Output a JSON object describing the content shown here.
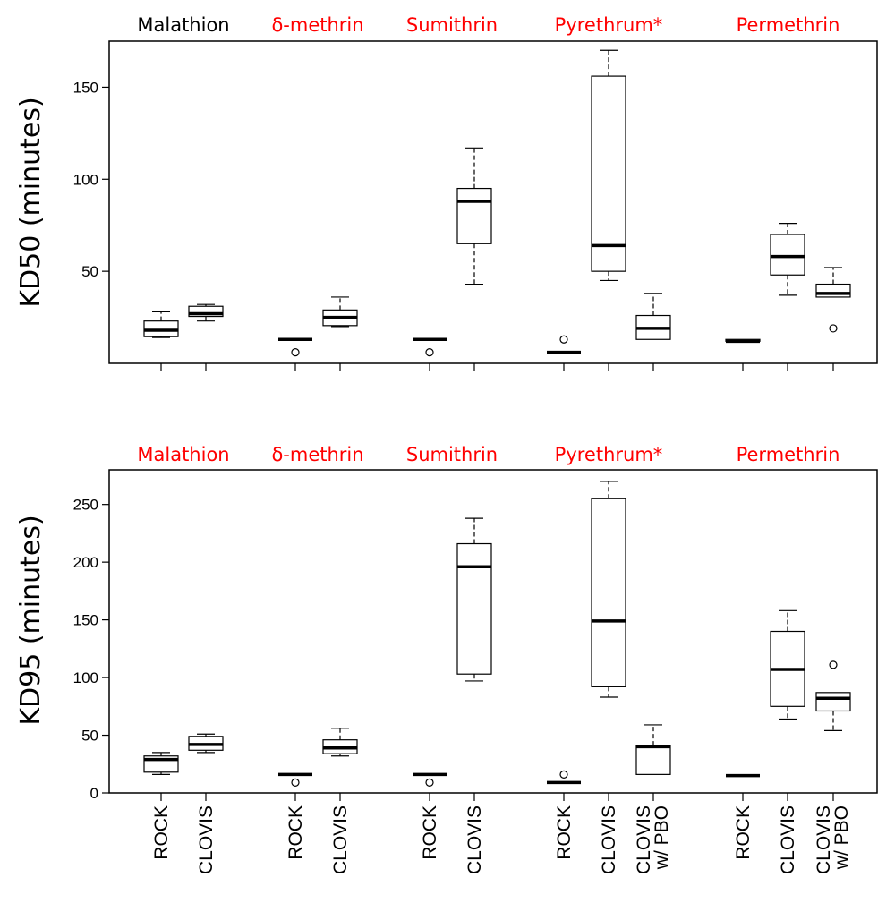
{
  "chart_data": [
    {
      "type": "box",
      "ylabel": "KD50 (minutes)",
      "ylim": [
        0,
        175
      ],
      "yticks": [
        50,
        100,
        150
      ],
      "grid": false,
      "groups": [
        {
          "label": "Malathion",
          "color": "#000000",
          "categories": [
            "ROCK",
            "CLOVIS"
          ]
        },
        {
          "label": "δ-methrin",
          "color": "#ff0000",
          "categories": [
            "ROCK",
            "CLOVIS"
          ]
        },
        {
          "label": "Sumithrin",
          "color": "#ff0000",
          "categories": [
            "ROCK",
            "CLOVIS"
          ]
        },
        {
          "label": "Pyrethrum*",
          "color": "#ff0000",
          "categories": [
            "ROCK",
            "CLOVIS",
            "CLOVIS w/ PBO"
          ]
        },
        {
          "label": "Permethrin",
          "color": "#ff0000",
          "categories": [
            "ROCK",
            "CLOVIS",
            "CLOVIS w/ PBO"
          ]
        }
      ],
      "boxes": [
        {
          "group": "Malathion",
          "category": "ROCK",
          "whisker_low": 14,
          "q1": 14.5,
          "median": 18,
          "q3": 23,
          "whisker_high": 28,
          "outliers": []
        },
        {
          "group": "Malathion",
          "category": "CLOVIS",
          "whisker_low": 23,
          "q1": 25.5,
          "median": 27,
          "q3": 31,
          "whisker_high": 32,
          "outliers": []
        },
        {
          "group": "δ-methrin",
          "category": "ROCK",
          "whisker_low": 13,
          "q1": 13,
          "median": 13,
          "q3": 13,
          "whisker_high": 13,
          "outliers": [
            6
          ]
        },
        {
          "group": "δ-methrin",
          "category": "CLOVIS",
          "whisker_low": 20,
          "q1": 20.5,
          "median": 25,
          "q3": 29,
          "whisker_high": 36,
          "outliers": []
        },
        {
          "group": "Sumithrin",
          "category": "ROCK",
          "whisker_low": 13,
          "q1": 13,
          "median": 13,
          "q3": 13,
          "whisker_high": 13,
          "outliers": [
            6
          ]
        },
        {
          "group": "Sumithrin",
          "category": "CLOVIS",
          "whisker_low": 43,
          "q1": 65,
          "median": 88,
          "q3": 95,
          "whisker_high": 117,
          "outliers": []
        },
        {
          "group": "Pyrethrum*",
          "category": "ROCK",
          "whisker_low": 6,
          "q1": 6,
          "median": 6,
          "q3": 6,
          "whisker_high": 6,
          "outliers": [
            13
          ]
        },
        {
          "group": "Pyrethrum*",
          "category": "CLOVIS",
          "whisker_low": 45,
          "q1": 50,
          "median": 64,
          "q3": 156,
          "whisker_high": 170,
          "outliers": []
        },
        {
          "group": "Pyrethrum*",
          "category": "CLOVIS w/ PBO",
          "whisker_low": 13,
          "q1": 13,
          "median": 19,
          "q3": 26,
          "whisker_high": 38,
          "outliers": []
        },
        {
          "group": "Permethrin",
          "category": "ROCK",
          "whisker_low": 12,
          "q1": 12,
          "median": 12,
          "q3": 13,
          "whisker_high": 13,
          "outliers": []
        },
        {
          "group": "Permethrin",
          "category": "CLOVIS",
          "whisker_low": 37,
          "q1": 48,
          "median": 58,
          "q3": 70,
          "whisker_high": 76,
          "outliers": []
        },
        {
          "group": "Permethrin",
          "category": "CLOVIS w/ PBO",
          "whisker_low": 36,
          "q1": 36,
          "median": 38,
          "q3": 43,
          "whisker_high": 52,
          "outliers": [
            19
          ]
        }
      ]
    },
    {
      "type": "box",
      "ylabel": "KD95 (minutes)",
      "ylim": [
        0,
        280
      ],
      "yticks": [
        0,
        50,
        100,
        150,
        200,
        250
      ],
      "grid": false,
      "groups": [
        {
          "label": "Malathion",
          "color": "#ff0000",
          "categories": [
            "ROCK",
            "CLOVIS"
          ]
        },
        {
          "label": "δ-methrin",
          "color": "#ff0000",
          "categories": [
            "ROCK",
            "CLOVIS"
          ]
        },
        {
          "label": "Sumithrin",
          "color": "#ff0000",
          "categories": [
            "ROCK",
            "CLOVIS"
          ]
        },
        {
          "label": "Pyrethrum*",
          "color": "#ff0000",
          "categories": [
            "ROCK",
            "CLOVIS",
            "CLOVIS w/ PBO"
          ]
        },
        {
          "label": "Permethrin",
          "color": "#ff0000",
          "categories": [
            "ROCK",
            "CLOVIS",
            "CLOVIS w/ PBO"
          ]
        }
      ],
      "boxes": [
        {
          "group": "Malathion",
          "category": "ROCK",
          "whisker_low": 16,
          "q1": 18,
          "median": 29,
          "q3": 32,
          "whisker_high": 35,
          "outliers": []
        },
        {
          "group": "Malathion",
          "category": "CLOVIS",
          "whisker_low": 35,
          "q1": 37,
          "median": 42,
          "q3": 49,
          "whisker_high": 51,
          "outliers": []
        },
        {
          "group": "δ-methrin",
          "category": "ROCK",
          "whisker_low": 16,
          "q1": 16,
          "median": 16,
          "q3": 16,
          "whisker_high": 16,
          "outliers": [
            9
          ]
        },
        {
          "group": "δ-methrin",
          "category": "CLOVIS",
          "whisker_low": 32,
          "q1": 34,
          "median": 39,
          "q3": 46,
          "whisker_high": 56,
          "outliers": []
        },
        {
          "group": "Sumithrin",
          "category": "ROCK",
          "whisker_low": 16,
          "q1": 16,
          "median": 16,
          "q3": 16,
          "whisker_high": 16,
          "outliers": [
            9
          ]
        },
        {
          "group": "Sumithrin",
          "category": "CLOVIS",
          "whisker_low": 97,
          "q1": 103,
          "median": 196,
          "q3": 216,
          "whisker_high": 238,
          "outliers": []
        },
        {
          "group": "Pyrethrum*",
          "category": "ROCK",
          "whisker_low": 9,
          "q1": 9,
          "median": 9,
          "q3": 9,
          "whisker_high": 9,
          "outliers": [
            16
          ]
        },
        {
          "group": "Pyrethrum*",
          "category": "CLOVIS",
          "whisker_low": 83,
          "q1": 92,
          "median": 149,
          "q3": 255,
          "whisker_high": 270,
          "outliers": []
        },
        {
          "group": "Pyrethrum*",
          "category": "CLOVIS w/ PBO",
          "whisker_low": 16,
          "q1": 16,
          "median": 40,
          "q3": 41,
          "whisker_high": 59,
          "outliers": []
        },
        {
          "group": "Permethrin",
          "category": "ROCK",
          "whisker_low": 15,
          "q1": 15,
          "median": 15,
          "q3": 15,
          "whisker_high": 15,
          "outliers": []
        },
        {
          "group": "Permethrin",
          "category": "CLOVIS",
          "whisker_low": 64,
          "q1": 75,
          "median": 107,
          "q3": 140,
          "whisker_high": 158,
          "outliers": []
        },
        {
          "group": "Permethrin",
          "category": "CLOVIS w/ PBO",
          "whisker_low": 54,
          "q1": 71,
          "median": 82,
          "q3": 87,
          "whisker_high": 87,
          "outliers": [
            111
          ]
        }
      ]
    }
  ]
}
